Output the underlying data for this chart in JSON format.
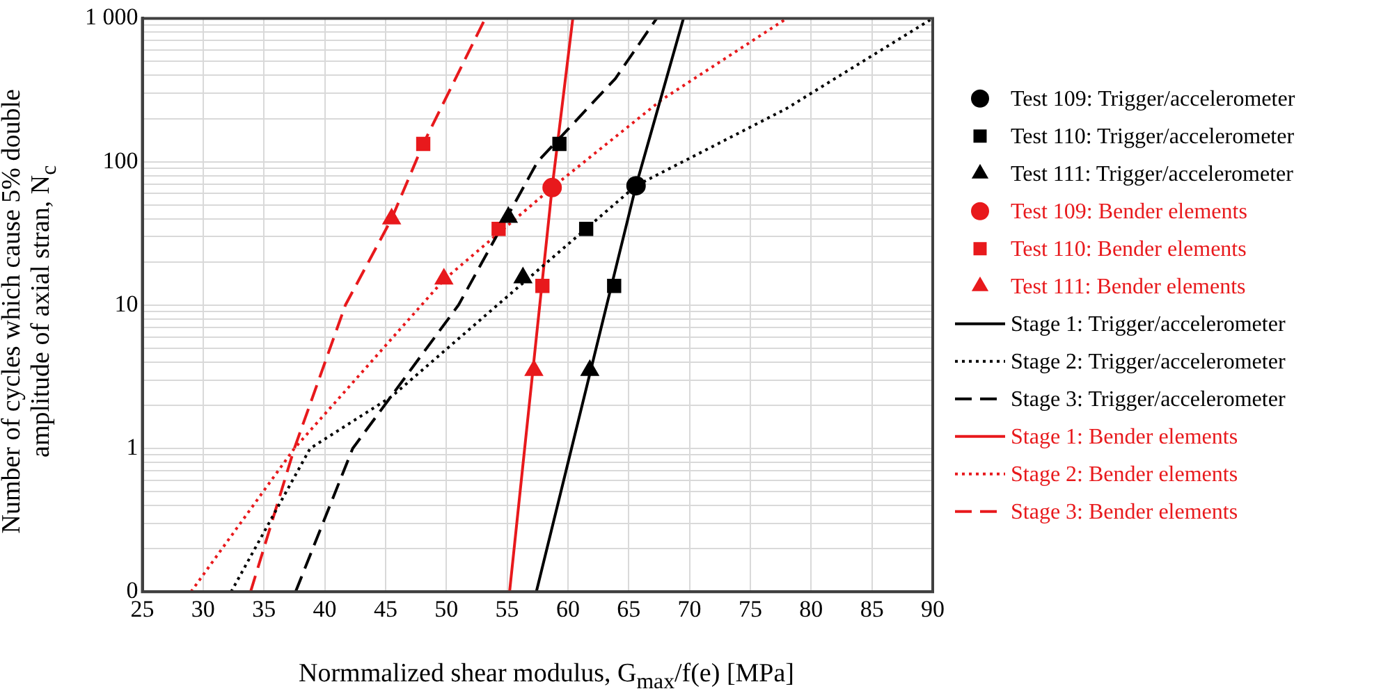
{
  "chart_data": {
    "type": "scatter",
    "xlabel": "Normmalized shear modulus, G$_{max}$/f(e) [MPa]",
    "ylabel": "Number of cycles which cause 5% double amplitude of axial stran, N$_{c}$",
    "xlim": [
      25,
      90
    ],
    "xticks": [
      25,
      30,
      35,
      40,
      45,
      50,
      55,
      60,
      65,
      70,
      75,
      80,
      85,
      90
    ],
    "ylim": [
      0.1,
      1000
    ],
    "log": "y",
    "grid": true,
    "legend": "right",
    "yticks": [
      {
        "value": 0.1,
        "label": "0"
      },
      {
        "value": 0.2,
        "label": null
      },
      {
        "value": 0.3,
        "label": null
      },
      {
        "value": 0.4,
        "label": null
      },
      {
        "value": 0.5,
        "label": null
      },
      {
        "value": 0.6,
        "label": null
      },
      {
        "value": 0.7,
        "label": null
      },
      {
        "value": 0.8,
        "label": null
      },
      {
        "value": 0.9,
        "label": null
      },
      1,
      {
        "value": 2,
        "label": null
      },
      {
        "value": 3,
        "label": null
      },
      {
        "value": 4,
        "label": null
      },
      {
        "value": 5,
        "label": null
      },
      {
        "value": 6,
        "label": null
      },
      {
        "value": 7,
        "label": null
      },
      {
        "value": 8,
        "label": null
      },
      {
        "value": 9,
        "label": null
      },
      10,
      {
        "value": 20,
        "label": null
      },
      {
        "value": 30,
        "label": null
      },
      {
        "value": 40,
        "label": null
      },
      {
        "value": 50,
        "label": null
      },
      {
        "value": 60,
        "label": null
      },
      {
        "value": 70,
        "label": null
      },
      {
        "value": 80,
        "label": null
      },
      {
        "value": 90,
        "label": null
      },
      100,
      {
        "value": 200,
        "label": null
      },
      {
        "value": 300,
        "label": null
      },
      {
        "value": 400,
        "label": null
      },
      {
        "value": 500,
        "label": null
      },
      {
        "value": 600,
        "label": null
      },
      {
        "value": 700,
        "label": null
      },
      {
        "value": 800,
        "label": null
      },
      {
        "value": 900,
        "label": null
      },
      {
        "value": 1000,
        "label": "1 000"
      }
    ],
    "series": [
      {
        "name": "Test 109: Trigger/accelerometer",
        "marker": "circle",
        "color": "#000000",
        "x": [
          65.6
        ],
        "values": [
          68
        ]
      },
      {
        "name": "Test 110: Trigger/accelerometer",
        "marker": "square",
        "color": "#000000",
        "x": [
          59.3,
          61.5,
          63.8
        ],
        "values": [
          133,
          34,
          13.6
        ]
      },
      {
        "name": "Test 111: Trigger/accelerometer",
        "marker": "triangle",
        "color": "#000000",
        "x": [
          55.1,
          56.3,
          61.8
        ],
        "values": [
          41,
          15.5,
          3.5
        ]
      },
      {
        "name": "Test 109: Bender elements",
        "marker": "circle",
        "color": "#e8191c",
        "x": [
          58.7
        ],
        "values": [
          66
        ]
      },
      {
        "name": "Test 110: Bender elements",
        "marker": "square",
        "color": "#e8191c",
        "x": [
          48.1,
          54.3,
          57.9
        ],
        "values": [
          133,
          34,
          13.6
        ]
      },
      {
        "name": "Test 111: Bender elements",
        "marker": "triangle",
        "color": "#e8191c",
        "x": [
          45.5,
          49.8,
          57.2
        ],
        "values": [
          40,
          15.2,
          3.5
        ]
      },
      {
        "name": "Stage 1: Trigger/accelerometer",
        "type": "line",
        "marker": "none",
        "line_style": "solid",
        "color": "#000000",
        "x": [
          57.4,
          65.6,
          69.5
        ],
        "values": [
          0.1,
          68,
          1000
        ]
      },
      {
        "name": "Stage 2: Trigger/accelerometer",
        "type": "line",
        "marker": "none",
        "line_style": "dotted",
        "color": "#000000",
        "x": [
          32.3,
          38.8,
          45.5,
          54.2,
          65.6,
          77.9,
          90
        ],
        "values": [
          0.1,
          1,
          2.3,
          10,
          68,
          233,
          1000
        ]
      },
      {
        "name": "Stage 3: Trigger/accelerometer",
        "type": "line",
        "marker": "none",
        "line_style": "dashed",
        "color": "#000000",
        "x": [
          37.6,
          42.3,
          51,
          57.5,
          63.9,
          67.3
        ],
        "values": [
          0.1,
          1,
          10,
          100,
          380,
          1000
        ]
      },
      {
        "name": "Stage 1: Bender elements",
        "type": "line",
        "marker": "none",
        "line_style": "solid",
        "color": "#e8191c",
        "x": [
          55.2,
          58.7,
          60.4
        ],
        "values": [
          0.1,
          66,
          1000
        ]
      },
      {
        "name": "Stage 2: Bender elements",
        "type": "line",
        "marker": "none",
        "line_style": "dotted",
        "color": "#e8191c",
        "x": [
          29,
          37.5,
          49.8,
          58.7,
          67.7,
          78
        ],
        "values": [
          0.1,
          1,
          15,
          66,
          270,
          1000
        ]
      },
      {
        "name": "Stage 3: Bender elements",
        "type": "line",
        "marker": "none",
        "line_style": "dashed",
        "color": "#e8191c",
        "x": [
          33.9,
          37.5,
          41.7,
          45.5,
          48.1,
          53.2
        ],
        "values": [
          0.1,
          1,
          10,
          40,
          133,
          1000
        ]
      }
    ]
  }
}
